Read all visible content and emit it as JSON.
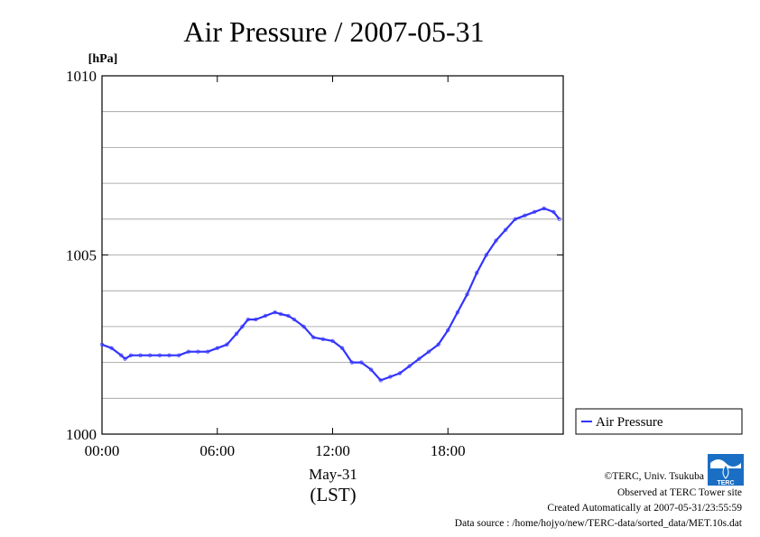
{
  "chart_data": {
    "type": "line",
    "title": "Air Pressure / 2007-05-31",
    "ylabel": "[hPa]",
    "xlabel": "May-31",
    "xsub": "(LST)",
    "xlim": [
      0,
      24
    ],
    "ylim": [
      1000,
      1010
    ],
    "xticks": [
      {
        "v": 0,
        "label": "00:00"
      },
      {
        "v": 6,
        "label": "06:00"
      },
      {
        "v": 12,
        "label": "12:00"
      },
      {
        "v": 18,
        "label": "18:00"
      }
    ],
    "yticks": [
      {
        "v": 1000,
        "label": "1000"
      },
      {
        "v": 1005,
        "label": "1005"
      },
      {
        "v": 1010,
        "label": "1010"
      }
    ],
    "ygrid_step": 1,
    "grid": true,
    "legend_position": "right-bottom",
    "series": [
      {
        "name": "Air Pressure",
        "color": "#3333ff",
        "x": [
          0.0,
          0.5,
          1.0,
          1.2,
          1.5,
          2.0,
          2.5,
          3.0,
          3.5,
          4.0,
          4.5,
          5.0,
          5.5,
          6.0,
          6.5,
          7.0,
          7.3,
          7.6,
          8.0,
          8.5,
          9.0,
          9.3,
          9.7,
          10.0,
          10.5,
          11.0,
          11.5,
          12.0,
          12.5,
          13.0,
          13.5,
          14.0,
          14.5,
          15.0,
          15.5,
          16.0,
          16.5,
          17.0,
          17.5,
          18.0,
          18.5,
          19.0,
          19.5,
          20.0,
          20.5,
          21.0,
          21.5,
          22.0,
          22.5,
          23.0,
          23.5,
          23.8
        ],
        "y": [
          1002.5,
          1002.4,
          1002.2,
          1002.1,
          1002.2,
          1002.2,
          1002.2,
          1002.2,
          1002.2,
          1002.2,
          1002.3,
          1002.3,
          1002.3,
          1002.4,
          1002.5,
          1002.8,
          1003.0,
          1003.2,
          1003.2,
          1003.3,
          1003.4,
          1003.35,
          1003.3,
          1003.2,
          1003.0,
          1002.7,
          1002.65,
          1002.6,
          1002.4,
          1002.0,
          1002.0,
          1001.8,
          1001.5,
          1001.6,
          1001.7,
          1001.9,
          1002.1,
          1002.3,
          1002.5,
          1002.9,
          1003.4,
          1003.9,
          1004.5,
          1005.0,
          1005.4,
          1005.7,
          1006.0,
          1006.1,
          1006.2,
          1006.3,
          1006.2,
          1006.0
        ]
      }
    ]
  },
  "footer": {
    "copyright": "©TERC, Univ. Tsukuba",
    "observed": "Observed at TERC Tower site",
    "created": "Created Automatically at 2007-05-31/23:55:59",
    "source": "Data source : /home/hojyo/new/TERC-data/sorted_data/MET.10s.dat"
  },
  "logo": {
    "text": "TERC",
    "color": "#1a6fc4"
  }
}
